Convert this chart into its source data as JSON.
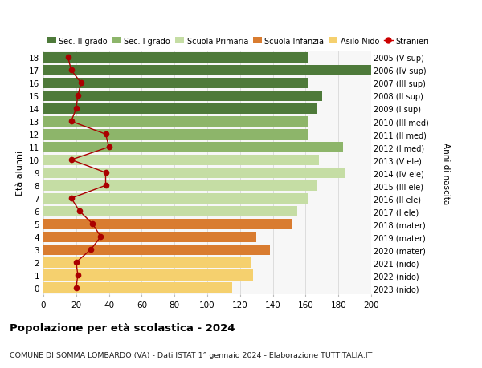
{
  "ages": [
    0,
    1,
    2,
    3,
    4,
    5,
    6,
    7,
    8,
    9,
    10,
    11,
    12,
    13,
    14,
    15,
    16,
    17,
    18
  ],
  "labels_right": [
    "2023 (nido)",
    "2022 (nido)",
    "2021 (nido)",
    "2020 (mater)",
    "2019 (mater)",
    "2018 (mater)",
    "2017 (I ele)",
    "2016 (II ele)",
    "2015 (III ele)",
    "2014 (IV ele)",
    "2013 (V ele)",
    "2012 (I med)",
    "2011 (II med)",
    "2010 (III med)",
    "2009 (I sup)",
    "2008 (II sup)",
    "2007 (III sup)",
    "2006 (IV sup)",
    "2005 (V sup)"
  ],
  "bar_values": [
    115,
    128,
    127,
    138,
    130,
    152,
    155,
    162,
    167,
    184,
    168,
    183,
    162,
    162,
    167,
    170,
    162,
    200,
    162
  ],
  "stranieri": [
    20,
    21,
    20,
    29,
    35,
    30,
    22,
    17,
    38,
    38,
    17,
    40,
    38,
    17,
    20,
    21,
    23,
    17,
    15
  ],
  "bar_colors": [
    "#f5d06e",
    "#f5d06e",
    "#f5d06e",
    "#d97c30",
    "#d97c30",
    "#d97c30",
    "#c5dda4",
    "#c5dda4",
    "#c5dda4",
    "#c5dda4",
    "#c5dda4",
    "#8db56a",
    "#8db56a",
    "#8db56a",
    "#4e7a3a",
    "#4e7a3a",
    "#4e7a3a",
    "#4e7a3a",
    "#4e7a3a"
  ],
  "legend_labels": [
    "Sec. II grado",
    "Sec. I grado",
    "Scuola Primaria",
    "Scuola Infanzia",
    "Asilo Nido",
    "Stranieri"
  ],
  "legend_colors": [
    "#4e7a3a",
    "#8db56a",
    "#c5dda4",
    "#d97c30",
    "#f5d06e",
    "#cc0000"
  ],
  "ylabel_label": "Età alunni",
  "right_label": "Anni di nascita",
  "title": "Popolazione per età scolastica - 2024",
  "subtitle": "COMUNE DI SOMMA LOMBARDO (VA) - Dati ISTAT 1° gennaio 2024 - Elaborazione TUTTITALIA.IT",
  "xlim": [
    0,
    200
  ],
  "xticks": [
    0,
    20,
    40,
    60,
    80,
    100,
    120,
    140,
    160,
    180,
    200
  ],
  "grid_color": "#dddddd",
  "stranieri_color": "#aa0000",
  "bar_height": 0.82,
  "bg_color": "#f7f7f7"
}
